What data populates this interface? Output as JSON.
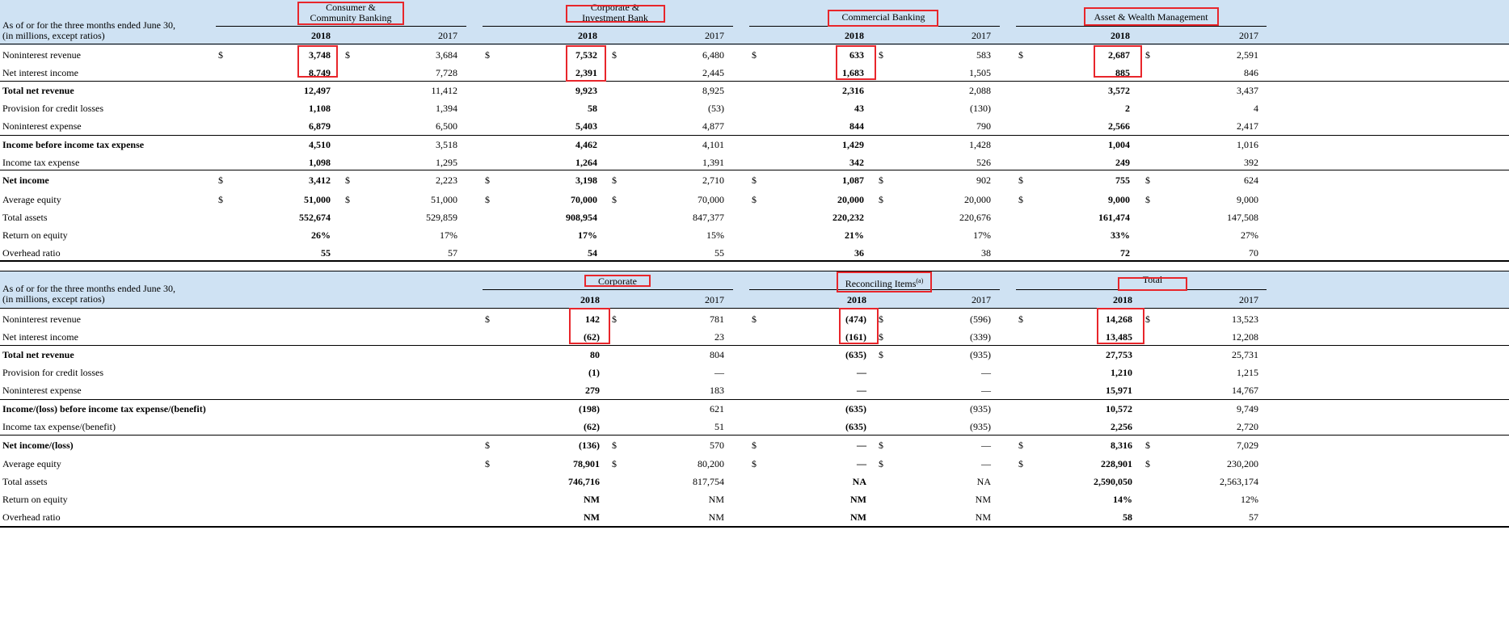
{
  "caption": {
    "line1": "As of or for the three months ended June 30,",
    "line2": "(in millions, except ratios)"
  },
  "years": {
    "current": "2018",
    "prior": "2017"
  },
  "dollar_sign": "$",
  "table1": {
    "segments": [
      {
        "name_line1": "Consumer &",
        "name_line2": "Community Banking"
      },
      {
        "name_line1": "Corporate &",
        "name_line2": "Investment Bank"
      },
      {
        "name_line1": "Commercial Banking",
        "name_line2": ""
      },
      {
        "name_line1": "Asset & Wealth Management",
        "name_line2": ""
      }
    ],
    "rows": [
      {
        "label": "Noninterest revenue",
        "bold": false,
        "dollar": true,
        "values": [
          [
            "3,748",
            "3,684"
          ],
          [
            "7,532",
            "6,480"
          ],
          [
            "633",
            "583"
          ],
          [
            "2,687",
            "2,591"
          ]
        ]
      },
      {
        "label": "Net interest income",
        "bold": false,
        "dollar": false,
        "values": [
          [
            "8,749",
            "7,728"
          ],
          [
            "2,391",
            "2,445"
          ],
          [
            "1,683",
            "1,505"
          ],
          [
            "885",
            "846"
          ]
        ]
      },
      {
        "label": "Total net revenue",
        "bold": true,
        "dollar": false,
        "values": [
          [
            "12,497",
            "11,412"
          ],
          [
            "9,923",
            "8,925"
          ],
          [
            "2,316",
            "2,088"
          ],
          [
            "3,572",
            "3,437"
          ]
        ]
      },
      {
        "label": "Provision for credit losses",
        "bold": false,
        "dollar": false,
        "values": [
          [
            "1,108",
            "1,394"
          ],
          [
            "58",
            "(53)"
          ],
          [
            "43",
            "(130)"
          ],
          [
            "2",
            "4"
          ]
        ]
      },
      {
        "label": "Noninterest expense",
        "bold": false,
        "dollar": false,
        "values": [
          [
            "6,879",
            "6,500"
          ],
          [
            "5,403",
            "4,877"
          ],
          [
            "844",
            "790"
          ],
          [
            "2,566",
            "2,417"
          ]
        ]
      },
      {
        "label": "Income before income tax expense",
        "bold": true,
        "dollar": false,
        "values": [
          [
            "4,510",
            "3,518"
          ],
          [
            "4,462",
            "4,101"
          ],
          [
            "1,429",
            "1,428"
          ],
          [
            "1,004",
            "1,016"
          ]
        ]
      },
      {
        "label": "Income tax expense",
        "bold": false,
        "dollar": false,
        "values": [
          [
            "1,098",
            "1,295"
          ],
          [
            "1,264",
            "1,391"
          ],
          [
            "342",
            "526"
          ],
          [
            "249",
            "392"
          ]
        ]
      },
      {
        "label": "Net income",
        "bold": true,
        "dollar": true,
        "values": [
          [
            "3,412",
            "2,223"
          ],
          [
            "3,198",
            "2,710"
          ],
          [
            "1,087",
            "902"
          ],
          [
            "755",
            "624"
          ]
        ]
      },
      {
        "label": "Average equity",
        "bold": false,
        "dollar": true,
        "values": [
          [
            "51,000",
            "51,000"
          ],
          [
            "70,000",
            "70,000"
          ],
          [
            "20,000",
            "20,000"
          ],
          [
            "9,000",
            "9,000"
          ]
        ]
      },
      {
        "label": "Total assets",
        "bold": false,
        "dollar": false,
        "values": [
          [
            "552,674",
            "529,859"
          ],
          [
            "908,954",
            "847,377"
          ],
          [
            "220,232",
            "220,676"
          ],
          [
            "161,474",
            "147,508"
          ]
        ]
      },
      {
        "label": "Return on equity",
        "bold": false,
        "dollar": false,
        "values": [
          [
            "26%",
            "17%"
          ],
          [
            "17%",
            "15%"
          ],
          [
            "21%",
            "17%"
          ],
          [
            "33%",
            "27%"
          ]
        ]
      },
      {
        "label": "Overhead ratio",
        "bold": false,
        "dollar": false,
        "values": [
          [
            "55",
            "57"
          ],
          [
            "54",
            "55"
          ],
          [
            "36",
            "38"
          ],
          [
            "72",
            "70"
          ]
        ]
      }
    ]
  },
  "table2": {
    "segments": [
      {
        "name_line1": "Corporate",
        "name_line2": ""
      },
      {
        "name_line1": "Reconciling Items",
        "superscript": "(a)",
        "name_line2": ""
      },
      {
        "name_line1": "Total",
        "name_line2": ""
      }
    ],
    "rows": [
      {
        "label": "Noninterest revenue",
        "bold": false,
        "dollars": [
          [
            true,
            true
          ],
          [
            true,
            true
          ],
          [
            true,
            true
          ]
        ],
        "values": [
          [
            "142",
            "781"
          ],
          [
            "(474)",
            "(596)"
          ],
          [
            "14,268",
            "13,523"
          ]
        ]
      },
      {
        "label": "Net interest income",
        "bold": false,
        "dollars": [
          [
            false,
            false
          ],
          [
            false,
            true
          ],
          [
            false,
            false
          ]
        ],
        "values": [
          [
            "(62)",
            "23"
          ],
          [
            "(161)",
            "(339)"
          ],
          [
            "13,485",
            "12,208"
          ]
        ]
      },
      {
        "label": "Total net revenue",
        "bold": true,
        "dollars": [
          [
            false,
            false
          ],
          [
            false,
            true
          ],
          [
            false,
            false
          ]
        ],
        "values": [
          [
            "80",
            "804"
          ],
          [
            "(635)",
            "(935)"
          ],
          [
            "27,753",
            "25,731"
          ]
        ]
      },
      {
        "label": "Provision for credit losses",
        "bold": false,
        "dollars": [
          [
            false,
            false
          ],
          [
            false,
            false
          ],
          [
            false,
            false
          ]
        ],
        "values": [
          [
            "(1)",
            "—"
          ],
          [
            "—",
            "—"
          ],
          [
            "1,210",
            "1,215"
          ]
        ]
      },
      {
        "label": "Noninterest expense",
        "bold": false,
        "dollars": [
          [
            false,
            false
          ],
          [
            false,
            false
          ],
          [
            false,
            false
          ]
        ],
        "values": [
          [
            "279",
            "183"
          ],
          [
            "—",
            "—"
          ],
          [
            "15,971",
            "14,767"
          ]
        ]
      },
      {
        "label": "Income/(loss) before income tax expense/(benefit)",
        "bold": true,
        "dollars": [
          [
            false,
            false
          ],
          [
            false,
            false
          ],
          [
            false,
            false
          ]
        ],
        "values": [
          [
            "(198)",
            "621"
          ],
          [
            "(635)",
            "(935)"
          ],
          [
            "10,572",
            "9,749"
          ]
        ]
      },
      {
        "label": "Income tax expense/(benefit)",
        "bold": false,
        "dollars": [
          [
            false,
            false
          ],
          [
            false,
            false
          ],
          [
            false,
            false
          ]
        ],
        "values": [
          [
            "(62)",
            "51"
          ],
          [
            "(635)",
            "(935)"
          ],
          [
            "2,256",
            "2,720"
          ]
        ]
      },
      {
        "label": "Net income/(loss)",
        "bold": true,
        "dollars": [
          [
            true,
            true
          ],
          [
            true,
            true
          ],
          [
            true,
            true
          ]
        ],
        "values": [
          [
            "(136)",
            "570"
          ],
          [
            "—",
            "—"
          ],
          [
            "8,316",
            "7,029"
          ]
        ]
      },
      {
        "label": "Average equity",
        "bold": false,
        "dollars": [
          [
            true,
            true
          ],
          [
            true,
            true
          ],
          [
            true,
            true
          ]
        ],
        "values": [
          [
            "78,901",
            "80,200"
          ],
          [
            "—",
            "—"
          ],
          [
            "228,901",
            "230,200"
          ]
        ]
      },
      {
        "label": "Total assets",
        "bold": false,
        "dollars": [
          [
            false,
            false
          ],
          [
            false,
            false
          ],
          [
            false,
            false
          ]
        ],
        "values": [
          [
            "746,716",
            "817,754"
          ],
          [
            "NA",
            "NA"
          ],
          [
            "2,590,050",
            "2,563,174"
          ]
        ]
      },
      {
        "label": "Return on equity",
        "bold": false,
        "dollars": [
          [
            false,
            false
          ],
          [
            false,
            false
          ],
          [
            false,
            false
          ]
        ],
        "values": [
          [
            "NM",
            "NM"
          ],
          [
            "NM",
            "NM"
          ],
          [
            "14%",
            "12%"
          ]
        ]
      },
      {
        "label": "Overhead ratio",
        "bold": false,
        "dollars": [
          [
            false,
            false
          ],
          [
            false,
            false
          ],
          [
            false,
            false
          ]
        ],
        "values": [
          [
            "NM",
            "NM"
          ],
          [
            "NM",
            "NM"
          ],
          [
            "58",
            "57"
          ]
        ]
      }
    ]
  },
  "colors": {
    "header_band": "#cfe2f3",
    "highlight": "#e8262b",
    "rule": "#000000"
  }
}
